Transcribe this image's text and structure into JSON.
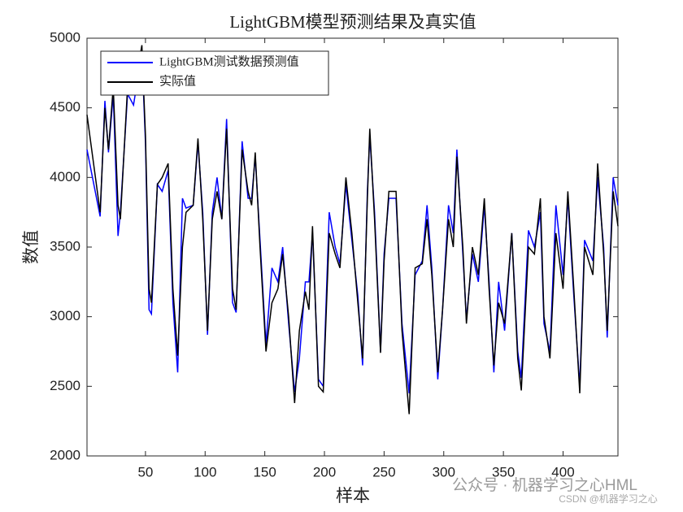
{
  "chart_data": {
    "type": "line",
    "title": "LightGBM模型预测结果及真实值",
    "xlabel": "样本",
    "ylabel": "数值",
    "x": [
      1,
      12,
      16,
      19,
      23,
      27,
      29,
      35,
      40,
      47,
      50,
      53,
      55,
      60,
      64,
      69,
      73,
      77,
      81,
      84,
      90,
      94,
      98,
      102,
      106,
      110,
      114,
      118,
      123,
      126,
      131,
      136,
      139,
      142,
      146,
      151,
      156,
      161,
      165,
      170,
      175,
      179,
      184,
      187,
      190,
      195,
      199,
      204,
      209,
      213,
      218,
      223,
      228,
      232,
      236,
      238,
      242,
      247,
      250,
      254,
      260,
      265,
      271,
      276,
      282,
      286,
      290,
      295,
      299,
      304,
      308,
      311,
      316,
      319,
      324,
      329,
      334,
      338,
      342,
      346,
      351,
      357,
      362,
      365,
      371,
      376,
      381,
      384,
      389,
      394,
      400,
      404,
      409,
      414,
      418,
      425,
      429,
      434,
      437,
      442,
      446
    ],
    "series": [
      {
        "name": "LightGBM测试数据预测值",
        "color": "#0000ff",
        "values": [
          4200,
          3720,
          4550,
          4180,
          4600,
          3580,
          3750,
          4600,
          4520,
          4900,
          4250,
          3050,
          3020,
          3950,
          3900,
          4050,
          3100,
          2600,
          3850,
          3780,
          3800,
          4250,
          3750,
          2870,
          3750,
          4000,
          3700,
          4420,
          3100,
          3030,
          4260,
          3850,
          3850,
          4150,
          3550,
          2800,
          3350,
          3250,
          3500,
          2950,
          2460,
          2700,
          3250,
          3250,
          3600,
          2550,
          2500,
          3750,
          3500,
          3380,
          3950,
          3550,
          3150,
          2650,
          3900,
          4300,
          3750,
          2750,
          3450,
          3850,
          3850,
          2950,
          2450,
          3300,
          3400,
          3800,
          3350,
          2550,
          3050,
          3800,
          3600,
          4200,
          3450,
          2980,
          3450,
          3250,
          3800,
          3250,
          2600,
          3250,
          2900,
          3600,
          2750,
          2560,
          3620,
          3500,
          3750,
          2950,
          2750,
          3800,
          3300,
          3850,
          3150,
          2500,
          3550,
          3400,
          4000,
          3500,
          2850,
          4000,
          3800
        ]
      },
      {
        "name": "实际值",
        "color": "#000000",
        "values": [
          4450,
          3750,
          4500,
          4200,
          4650,
          3800,
          3700,
          4650,
          4600,
          4950,
          4300,
          3200,
          3100,
          3950,
          4000,
          4100,
          3200,
          2720,
          3500,
          3750,
          3800,
          4280,
          3700,
          2900,
          3700,
          3900,
          3700,
          4350,
          3200,
          3050,
          4200,
          3900,
          3800,
          4180,
          3500,
          2750,
          3100,
          3200,
          3450,
          3000,
          2380,
          2900,
          3180,
          3050,
          3650,
          2500,
          2460,
          3600,
          3450,
          3350,
          4000,
          3600,
          3100,
          2700,
          3850,
          4350,
          3700,
          2740,
          3400,
          3900,
          3900,
          2900,
          2300,
          3350,
          3380,
          3700,
          3300,
          2600,
          3050,
          3700,
          3500,
          4150,
          3500,
          2950,
          3500,
          3300,
          3850,
          3200,
          2650,
          3100,
          2950,
          3600,
          2700,
          2470,
          3500,
          3450,
          3850,
          3000,
          2700,
          3600,
          3200,
          3900,
          3200,
          2450,
          3500,
          3300,
          4100,
          3450,
          2900,
          3900,
          3650
        ]
      }
    ],
    "xlim": [
      1,
      446
    ],
    "xticks": [
      50,
      100,
      150,
      200,
      250,
      300,
      350,
      400
    ],
    "ylim": [
      2000,
      5000
    ],
    "yticks": [
      2000,
      2500,
      3000,
      3500,
      4000,
      4500,
      5000
    ],
    "legend": "upper left",
    "watermark": "公众号 · 机器学习之心HML",
    "credit": "CSDN @机器学习之心"
  }
}
